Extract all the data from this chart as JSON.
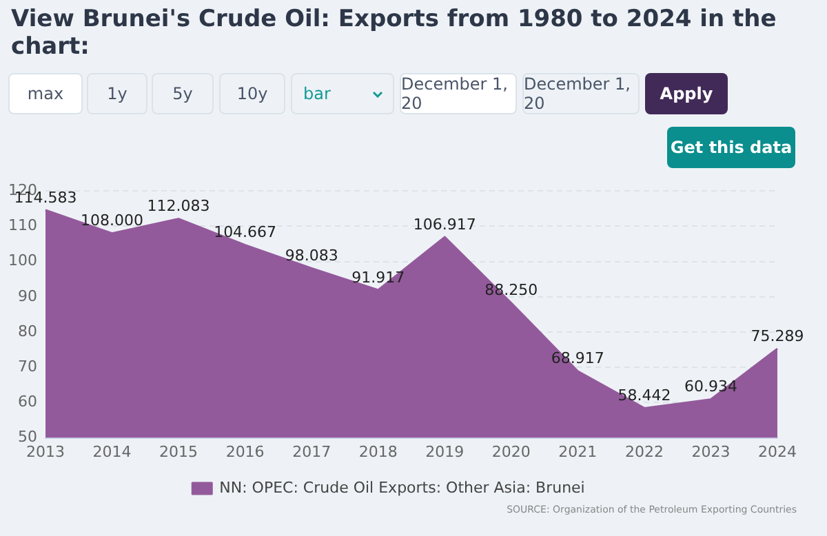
{
  "chart_data": {
    "type": "area",
    "title": "View Brunei's Crude Oil: Exports from 1980 to 2024 in the chart:",
    "categories": [
      "2013",
      "2014",
      "2015",
      "2016",
      "2017",
      "2018",
      "2019",
      "2020",
      "2021",
      "2022",
      "2023",
      "2024"
    ],
    "series": [
      {
        "name": "NN: OPEC: Crude Oil Exports: Other Asia: Brunei",
        "color": "#935a9b",
        "values": [
          114.583,
          108.0,
          112.083,
          104.667,
          98.083,
          91.917,
          106.917,
          88.25,
          68.917,
          58.442,
          60.934,
          75.289
        ],
        "value_labels": [
          "114.583",
          "108.000",
          "112.083",
          "104.667",
          "98.083",
          "91.917",
          "106.917",
          "88.250",
          "68.917",
          "58.442",
          "60.934",
          "75.289"
        ]
      }
    ],
    "ylim": [
      50,
      120
    ],
    "yticks": [
      50,
      60,
      70,
      80,
      90,
      100,
      110,
      120
    ],
    "grid": "y",
    "legend": "bottom",
    "annotations": [
      "max",
      "1y",
      "5y",
      "10y",
      "bar",
      "December 1, 20",
      "December 1, 20",
      "Apply",
      "Get this data",
      "SOURCE: Organization of the Petroleum Exporting Countries"
    ]
  }
}
